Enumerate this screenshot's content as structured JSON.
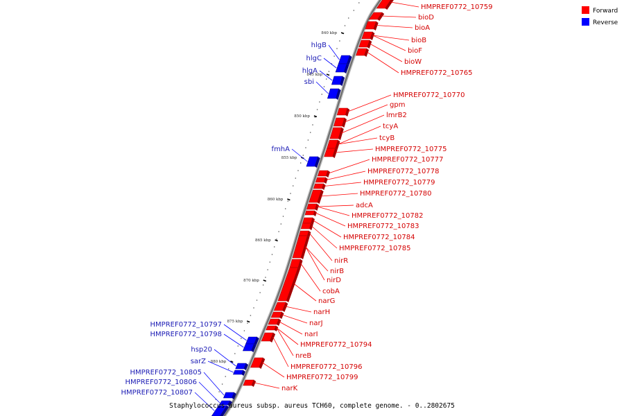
{
  "caption": "Staphylococcus aureus subsp. aureus TCH60, complete genome. - 0..2802675",
  "legend": [
    {
      "label": "Forward",
      "color": "#ff0000"
    },
    {
      "label": "Reverse",
      "color": "#0000ff"
    }
  ],
  "colors": {
    "forward": "#ff0000",
    "reverse": "#0000ff",
    "backbone": "#888888"
  },
  "ticks": [
    "840 kbp",
    "845 kbp",
    "850 kbp",
    "855 kbp",
    "860 kbp",
    "865 kbp",
    "870 kbp",
    "875 kbp",
    "880 kbp"
  ],
  "forward_genes": [
    "HMPREF0772_10759",
    "bioD",
    "bioA",
    "bioB",
    "bioF",
    "bioW",
    "HMPREF0772_10765",
    "HMPREF0772_10770",
    "gpm",
    "lmrB2",
    "tcyA",
    "tcyB",
    "HMPREF0772_10775",
    "HMPREF0772_10777",
    "HMPREF0772_10778",
    "HMPREF0772_10779",
    "HMPREF0772_10780",
    "adcA",
    "HMPREF0772_10782",
    "HMPREF0772_10783",
    "HMPREF0772_10784",
    "HMPREF0772_10785",
    "nirR",
    "nirB",
    "nirD",
    "cobA",
    "narG",
    "narH",
    "narJ",
    "narI",
    "HMPREF0772_10794",
    "nreB",
    "HMPREF0772_10796",
    "HMPREF0772_10799",
    "narK"
  ],
  "reverse_genes": [
    "hlgB",
    "hlgC",
    "hlgA",
    "sbi",
    "fmhA",
    "HMPREF0772_10797",
    "HMPREF0772_10798",
    "hsp20",
    "sarZ",
    "HMPREF0772_10805",
    "HMPREF0772_10806",
    "HMPREF0772_10807"
  ]
}
